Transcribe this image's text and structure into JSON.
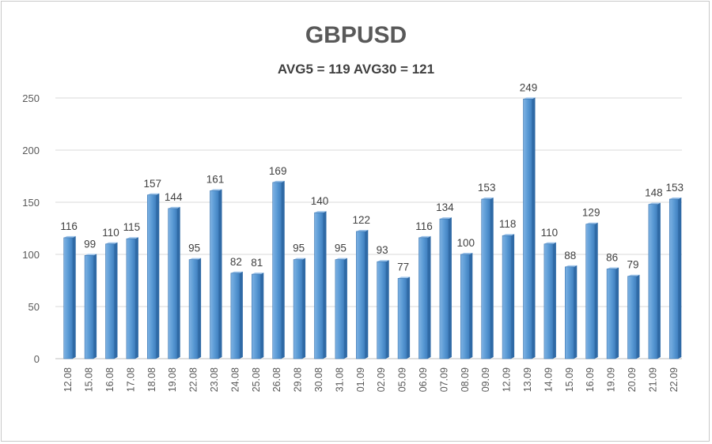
{
  "chart_data": {
    "type": "bar",
    "title": "GBPUSD",
    "subtitle": "AVG5 = 119 AVG30 = 121",
    "xlabel": "",
    "ylabel": "",
    "ylim": [
      0,
      250
    ],
    "yticks": [
      0,
      50,
      100,
      150,
      200,
      250
    ],
    "grid": true,
    "legend": "none",
    "bar_color": "#5b9bd5",
    "categories": [
      "12.08",
      "15.08",
      "16.08",
      "17.08",
      "18.08",
      "19.08",
      "22.08",
      "23.08",
      "24.08",
      "25.08",
      "26.08",
      "29.08",
      "30.08",
      "31.08",
      "01.09",
      "02.09",
      "05.09",
      "06.09",
      "07.09",
      "08.09",
      "09.09",
      "12.09",
      "13.09",
      "14.09",
      "15.09",
      "16.09",
      "19.09",
      "20.09",
      "21.09",
      "22.09"
    ],
    "values": [
      116,
      99,
      110,
      115,
      157,
      144,
      95,
      161,
      82,
      81,
      169,
      95,
      140,
      95,
      122,
      93,
      77,
      116,
      134,
      100,
      153,
      118,
      249,
      110,
      88,
      129,
      86,
      79,
      148,
      153
    ]
  }
}
